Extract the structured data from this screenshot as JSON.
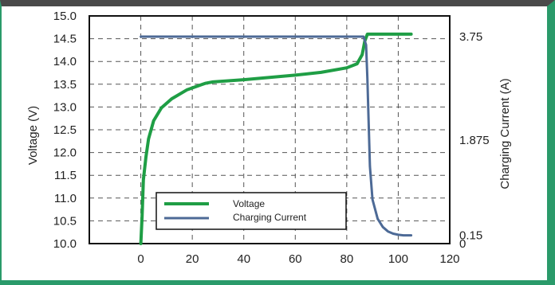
{
  "chart_data": {
    "type": "line",
    "xlabel": "",
    "ylabel": "Voltage (V)",
    "y2label": "Charging Current (A)",
    "xlim": [
      -20,
      120
    ],
    "ylim": [
      10.0,
      15.0
    ],
    "y2lim": [
      0,
      4.125
    ],
    "x_ticks": [
      "0",
      "20",
      "40",
      "60",
      "80",
      "100",
      "120"
    ],
    "y_ticks": [
      "15.0",
      "14.5",
      "14.0",
      "13.5",
      "13.0",
      "12.5",
      "12.0",
      "11.5",
      "11.0",
      "10.5",
      "10.0"
    ],
    "y2_ticks": [
      "3.75",
      "1.875",
      "0.15",
      "0"
    ],
    "grid": true,
    "legend_position": "lower-left",
    "colors": {
      "voltage": "#1f9e45",
      "current": "#4d6a96"
    },
    "series": [
      {
        "name": "Voltage",
        "axis": "left",
        "x": [
          0,
          0.5,
          1,
          2,
          3,
          5,
          8,
          12,
          18,
          25,
          28,
          40,
          60,
          70,
          80,
          84,
          86,
          87,
          88,
          105
        ],
        "y": [
          10.0,
          10.6,
          11.4,
          11.9,
          12.3,
          12.7,
          12.98,
          13.18,
          13.38,
          13.52,
          13.55,
          13.6,
          13.7,
          13.76,
          13.86,
          13.95,
          14.15,
          14.45,
          14.6,
          14.6
        ]
      },
      {
        "name": "Charging Current",
        "axis": "right",
        "x": [
          0,
          10,
          40,
          80,
          86.5,
          87.5,
          88,
          88.5,
          89,
          90,
          92,
          94,
          96,
          98,
          100,
          102,
          104,
          105
        ],
        "y": [
          3.75,
          3.75,
          3.75,
          3.75,
          3.75,
          3.6,
          3.0,
          2.2,
          1.4,
          0.8,
          0.45,
          0.3,
          0.22,
          0.18,
          0.16,
          0.15,
          0.15,
          0.15
        ]
      }
    ]
  }
}
